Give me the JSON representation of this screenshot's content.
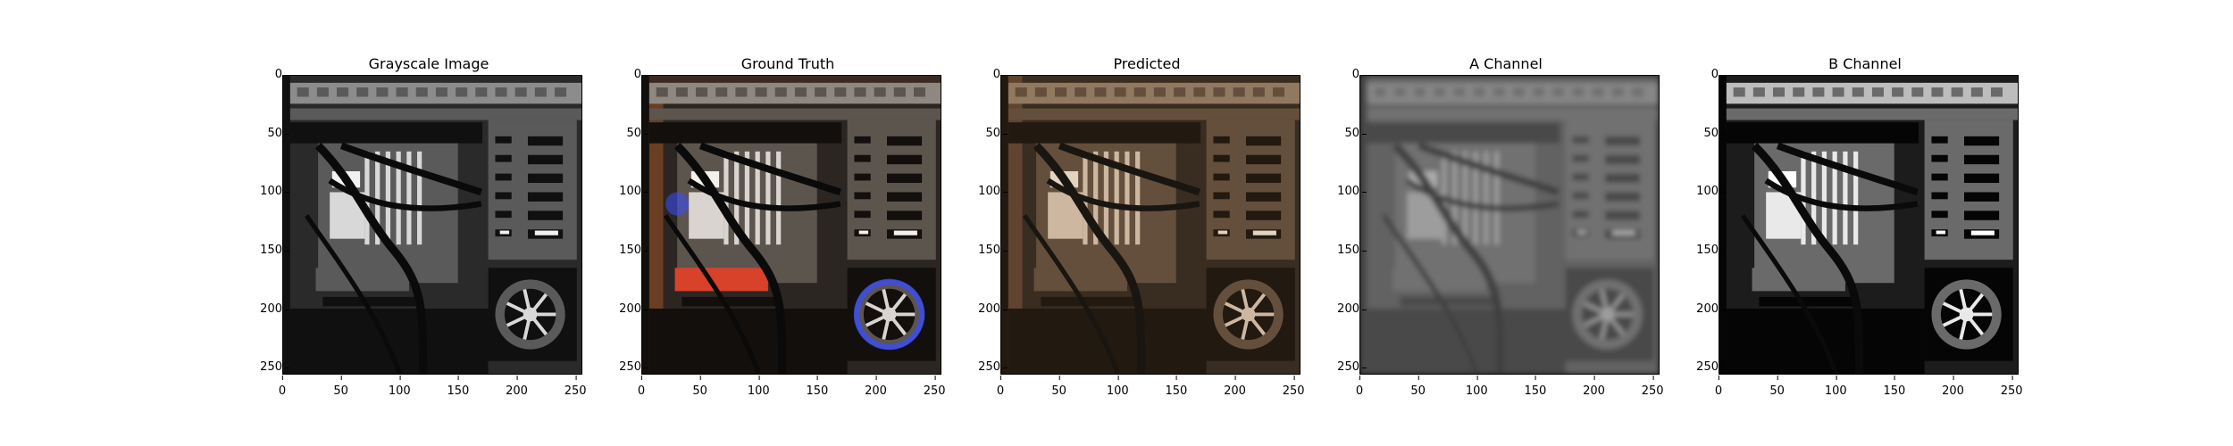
{
  "panels": [
    {
      "title": "Grayscale Image",
      "style": "gray",
      "image_desc": "computer-case-interior"
    },
    {
      "title": "Ground Truth",
      "style": "color",
      "image_desc": "computer-case-interior"
    },
    {
      "title": "Predicted",
      "style": "sepia",
      "image_desc": "computer-case-interior"
    },
    {
      "title": "A Channel",
      "style": "blur",
      "image_desc": "computer-case-interior"
    },
    {
      "title": "B Channel",
      "style": "contrast",
      "image_desc": "computer-case-interior"
    }
  ],
  "y_ticks": [
    "0",
    "50",
    "100",
    "150",
    "200",
    "250"
  ],
  "x_ticks": [
    "0",
    "50",
    "100",
    "150",
    "200",
    "250"
  ],
  "colors": {
    "gt_red": "#d8412a",
    "gt_blue": "#3a4cff",
    "pred_tint": "#8a6a4a"
  }
}
